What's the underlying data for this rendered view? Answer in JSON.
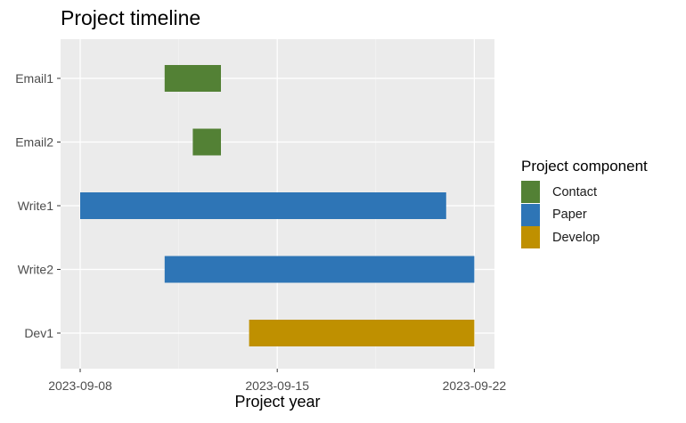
{
  "chart_data": {
    "type": "gantt-bar",
    "title": "Project timeline",
    "xlabel": "Project year",
    "ylabel": "",
    "x_ticks": [
      "2023-09-08",
      "2023-09-15",
      "2023-09-22"
    ],
    "xlim": [
      "2023-09-07",
      "2023-09-22"
    ],
    "grid": true,
    "legend": {
      "title": "Project component",
      "placement": "right",
      "entries": [
        {
          "name": "Contact",
          "color": "#538135"
        },
        {
          "name": "Paper",
          "color": "#2e75b6"
        },
        {
          "name": "Develop",
          "color": "#bf9000"
        }
      ]
    },
    "tasks": [
      {
        "label": "Email1",
        "start": "2023-09-11",
        "end": "2023-09-13",
        "component": "Contact"
      },
      {
        "label": "Email2",
        "start": "2023-09-12",
        "end": "2023-09-13",
        "component": "Contact"
      },
      {
        "label": "Write1",
        "start": "2023-09-08",
        "end": "2023-09-21",
        "component": "Paper"
      },
      {
        "label": "Write2",
        "start": "2023-09-11",
        "end": "2023-09-22",
        "component": "Paper"
      },
      {
        "label": "Dev1",
        "start": "2023-09-14",
        "end": "2023-09-22",
        "component": "Develop"
      }
    ]
  }
}
